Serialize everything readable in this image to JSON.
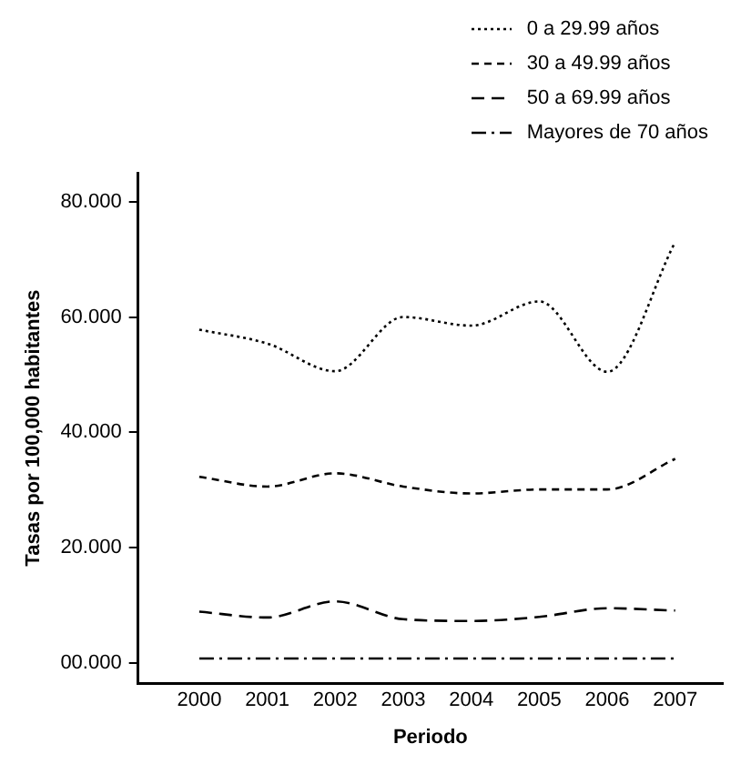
{
  "chart_data": {
    "type": "line",
    "xlabel": "Periodo",
    "ylabel": "Tasas por 100,000 habitantes",
    "x": [
      2000,
      2001,
      2002,
      2003,
      2004,
      2005,
      2006,
      2007
    ],
    "series": [
      {
        "name": "0 a 29.99 años",
        "color": "#000000",
        "line_style": "dotted",
        "values": [
          57.8,
          55.4,
          50.6,
          60.0,
          58.5,
          62.7,
          50.5,
          73.0
        ]
      },
      {
        "name": "30 a 49.99 años",
        "color": "#000000",
        "line_style": "dashed",
        "values": [
          32.3,
          30.6,
          32.9,
          30.6,
          29.4,
          30.1,
          30.1,
          35.4
        ]
      },
      {
        "name": "50 a 69.99 años",
        "color": "#000000",
        "line_style": "longdash",
        "values": [
          8.9,
          7.9,
          10.7,
          7.6,
          7.3,
          8.0,
          9.5,
          9.1
        ]
      },
      {
        "name": "Mayores de 70 años",
        "color": "#000000",
        "line_style": "dashdot",
        "values": [
          0.8,
          0.8,
          0.8,
          0.8,
          0.8,
          0.8,
          0.8,
          0.8
        ]
      }
    ],
    "xlim": [
      1999.1,
      2007.7
    ],
    "xticks": [
      2000,
      2001,
      2002,
      2003,
      2004,
      2005,
      2006,
      2007
    ],
    "ylim": [
      -3.5,
      85
    ],
    "yticks": [
      {
        "value": 0,
        "label": "00.000"
      },
      {
        "value": 20,
        "label": "20.000"
      },
      {
        "value": 40,
        "label": "40.000"
      },
      {
        "value": 60,
        "label": "60.000"
      },
      {
        "value": 80,
        "label": "80.000"
      }
    ],
    "grid": false,
    "legend": "top right",
    "marker": "none"
  }
}
